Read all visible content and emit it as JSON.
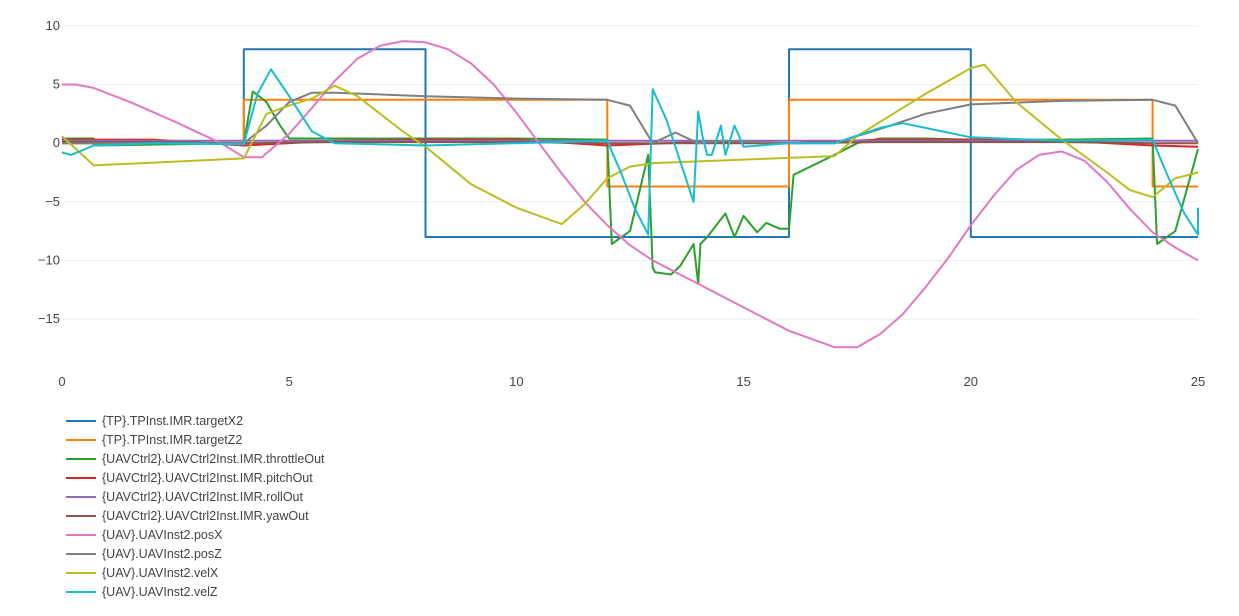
{
  "chart_data": {
    "type": "line",
    "title": "",
    "xlabel": "",
    "ylabel": "",
    "xlim": [
      0,
      25
    ],
    "ylim": [
      -19,
      10.5
    ],
    "xticks": [
      0,
      5,
      10,
      15,
      20,
      25
    ],
    "yticks": [
      10,
      5,
      0,
      -5,
      -10,
      -15
    ],
    "ytick_labels": [
      "10",
      "5",
      "0",
      "−5",
      "−10",
      "−15"
    ],
    "grid": "horizontal",
    "legend_position": "bottom-left",
    "series": [
      {
        "name": "{TP}.TPInst.IMR.targetX2",
        "color": "#1f77b4",
        "step": true,
        "x": [
          0,
          4,
          4,
          8,
          8,
          16,
          16,
          20,
          20,
          25
        ],
        "y": [
          0,
          0,
          8,
          8,
          -8,
          -8,
          8,
          8,
          -8,
          -8
        ]
      },
      {
        "name": "{TP}.TPInst.IMR.targetZ2",
        "color": "#ff7f0e",
        "step": true,
        "x": [
          0,
          4,
          4,
          12,
          12,
          16,
          16,
          24,
          24,
          25
        ],
        "y": [
          0,
          0,
          3.7,
          3.7,
          -3.7,
          -3.7,
          3.7,
          3.7,
          -3.7,
          -3.7
        ]
      },
      {
        "name": "{UAVCtrl2}.UAVCtrl2Inst.IMR.throttleOut",
        "color": "#2ca02c",
        "x": [
          0,
          0.7,
          0.7,
          4,
          4.2,
          4.5,
          4.8,
          5,
          6,
          8,
          10,
          12,
          12.1,
          12.5,
          12.9,
          13,
          13.05,
          13.4,
          13.6,
          13.9,
          14,
          14.05,
          14.2,
          14.4,
          14.6,
          14.8,
          15,
          15.3,
          15.5,
          15.8,
          16.0,
          16.1,
          17,
          17.5,
          18.0,
          19,
          20,
          22,
          24,
          24.1,
          24.5,
          25
        ],
        "y": [
          0.4,
          0.4,
          -0.2,
          0,
          4.4,
          3.5,
          1.5,
          0.4,
          0.4,
          0.4,
          0.4,
          0.3,
          -8.6,
          -7.5,
          -1.0,
          -10.6,
          -11.0,
          -11.2,
          -10.5,
          -8.6,
          -12.0,
          -8.6,
          -8.0,
          -7.0,
          -6.0,
          -8.0,
          -6.2,
          -7.6,
          -6.8,
          -7.3,
          -7.3,
          -2.7,
          -1.0,
          0,
          0.4,
          0.4,
          0.3,
          0.3,
          0.4,
          -8.6,
          -7.5,
          -0.5
        ]
      },
      {
        "name": "{UAVCtrl2}.UAVCtrl2Inst.IMR.pitchOut",
        "color": "#d62728",
        "x": [
          0,
          2,
          4,
          6,
          8,
          10,
          12,
          14,
          16,
          18,
          20,
          22,
          24,
          25
        ],
        "y": [
          0.3,
          0.3,
          -0.2,
          0.2,
          0.3,
          0.3,
          -0.2,
          0.1,
          0,
          0.3,
          0.3,
          0.2,
          -0.2,
          -0.3
        ]
      },
      {
        "name": "{UAVCtrl2}.UAVCtrl2Inst.IMR.rollOut",
        "color": "#9467bd",
        "x": [
          0,
          25
        ],
        "y": [
          0.2,
          0.2
        ]
      },
      {
        "name": "{UAVCtrl2}.UAVCtrl2Inst.IMR.yawOut",
        "color": "#8c564b",
        "x": [
          0,
          2,
          4,
          6,
          8,
          10,
          12,
          14,
          16,
          18,
          20,
          22,
          24,
          25
        ],
        "y": [
          0.1,
          0.1,
          0,
          0.1,
          0.1,
          0.1,
          0,
          0,
          0,
          0.1,
          0.1,
          0.1,
          0,
          0
        ]
      },
      {
        "name": "{UAV}.UAVInst2.posX",
        "color": "#e377c2",
        "x": [
          0,
          0.3,
          0.7,
          1.5,
          2.5,
          3.5,
          4.0,
          4.4,
          5,
          5.5,
          6,
          6.5,
          7,
          7.5,
          8,
          8.5,
          9,
          9.5,
          10,
          10.5,
          11,
          11.5,
          12,
          12.5,
          13,
          14,
          15,
          16,
          17,
          17.5,
          18,
          18.5,
          19,
          19.5,
          20,
          20.5,
          21,
          21.5,
          22,
          22.5,
          23,
          23.5,
          24,
          24.5,
          25
        ],
        "y": [
          5,
          5,
          4.7,
          3.5,
          1.8,
          0,
          -1.2,
          -1.2,
          0.8,
          3.0,
          5.3,
          7.2,
          8.3,
          8.7,
          8.6,
          8.0,
          6.8,
          5.0,
          2.6,
          0,
          -2.6,
          -5.0,
          -7.0,
          -8.7,
          -10.0,
          -12.0,
          -14.0,
          -16.0,
          -17.4,
          -17.4,
          -16.3,
          -14.6,
          -12.3,
          -9.8,
          -7.0,
          -4.5,
          -2.3,
          -1.0,
          -0.7,
          -1.5,
          -3.3,
          -5.6,
          -7.6,
          -8.9,
          -10.0
        ]
      },
      {
        "name": "{UAV}.UAVInst2.posZ",
        "color": "#7f7f7f",
        "x": [
          0,
          4,
          4.5,
          5,
          5.5,
          6,
          8,
          10,
          12,
          12.5,
          13,
          13.5,
          14,
          14.5,
          16,
          17,
          18,
          19,
          20,
          22,
          24,
          24.5,
          25
        ],
        "y": [
          0,
          0,
          1.5,
          3.5,
          4.3,
          4.3,
          4.0,
          3.8,
          3.7,
          3.2,
          0,
          0.9,
          0,
          0.2,
          0,
          0,
          1.2,
          2.5,
          3.3,
          3.6,
          3.7,
          3.2,
          0
        ]
      },
      {
        "name": "{UAV}.UAVInst2.velX",
        "color": "#bcbd22",
        "x": [
          0,
          0.7,
          4,
          4.5,
          5,
          5.5,
          6,
          6.5,
          7,
          7.5,
          8,
          9,
          10,
          10.5,
          11,
          11.5,
          12,
          12.5,
          13,
          15,
          17,
          17.5,
          18,
          19,
          20,
          20.3,
          21,
          22,
          23,
          23.5,
          24,
          24.5,
          25
        ],
        "y": [
          0.6,
          -1.9,
          -1.3,
          2.5,
          3.2,
          3.8,
          4.9,
          4.0,
          2.5,
          1.0,
          -0.3,
          -3.5,
          -5.5,
          -6.2,
          -6.9,
          -5.2,
          -3.0,
          -2.0,
          -1.7,
          -1.4,
          -1.1,
          0.6,
          1.8,
          4.2,
          6.4,
          6.7,
          3.5,
          0.3,
          -2.5,
          -4.0,
          -4.6,
          -3.0,
          -2.5
        ]
      },
      {
        "name": "{UAV}.UAVInst2.velZ",
        "color": "#17becf",
        "x": [
          0,
          0.2,
          0.7,
          2,
          4,
          4.3,
          4.6,
          5.0,
          5.5,
          6,
          8,
          10,
          12,
          12.3,
          12.6,
          12.9,
          13.0,
          13.3,
          13.6,
          13.9,
          14.0,
          14.1,
          14.2,
          14.3,
          14.5,
          14.6,
          14.8,
          15,
          16,
          17,
          18,
          18.5,
          19,
          20,
          22,
          24,
          24.3,
          24.7,
          25,
          25
        ],
        "y": [
          -0.8,
          -1.0,
          -0.2,
          0,
          -0.1,
          4.2,
          6.3,
          4.0,
          1.0,
          0,
          -0.2,
          0,
          0.2,
          -2.5,
          -5.5,
          -7.8,
          4.6,
          2.0,
          -1.5,
          -5.0,
          2.7,
          0.5,
          -1.0,
          -1.0,
          1.5,
          -1.0,
          1.5,
          -0.3,
          0,
          0,
          1.3,
          1.7,
          1.3,
          0.5,
          0.2,
          0.3,
          -2.5,
          -6.0,
          -7.8,
          -5.5
        ]
      }
    ]
  }
}
